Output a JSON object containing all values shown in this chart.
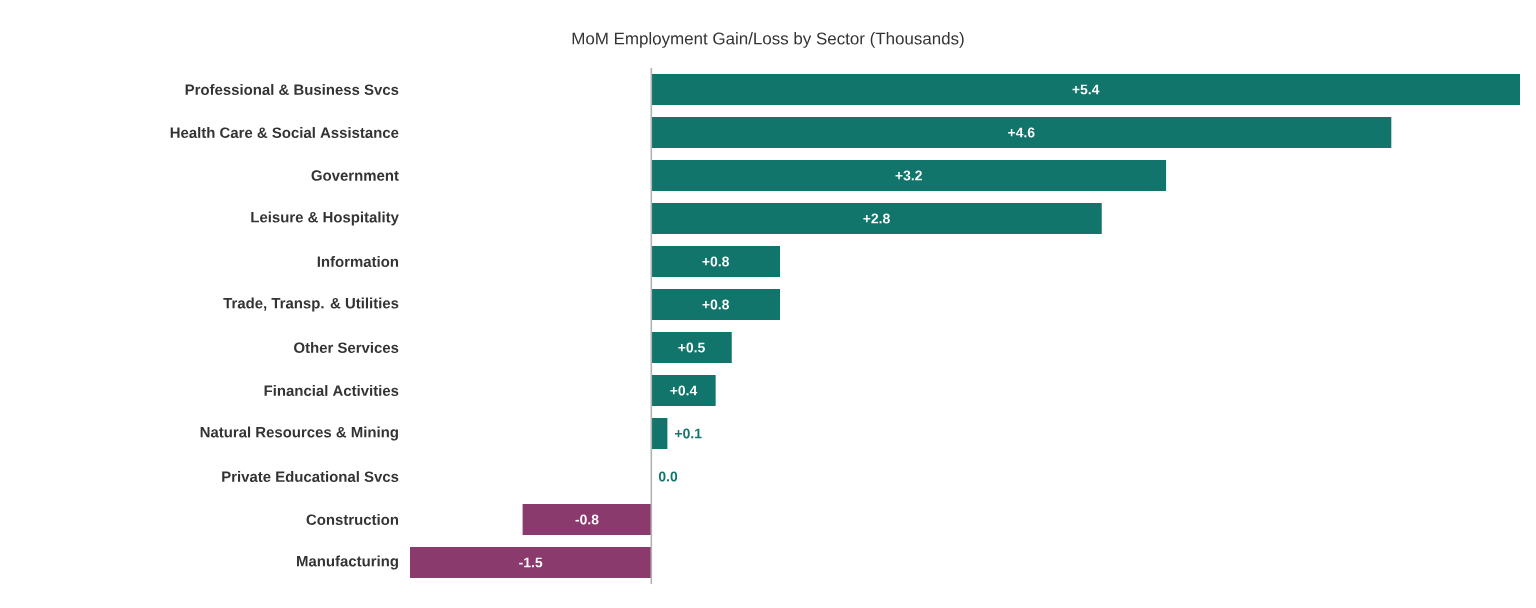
{
  "chart_data": {
    "type": "bar",
    "orientation": "horizontal",
    "title": "MoM Employment Gain/Loss by Sector (Thousands)",
    "categories": [
      "Professional & Business Svcs",
      "Health Care & Social Assistance",
      "Government",
      "Leisure & Hospitality",
      "Information",
      "Trade, Transp. & Utilities",
      "Other Services",
      "Financial Activities",
      "Natural Resources & Mining",
      "Private Educational Svcs",
      "Construction",
      "Manufacturing"
    ],
    "values": [
      5.4,
      4.6,
      3.2,
      2.8,
      0.8,
      0.8,
      0.5,
      0.4,
      0.1,
      0.0,
      -0.8,
      -1.5
    ],
    "value_labels": [
      "+5.4",
      "+4.6",
      "+3.2",
      "+2.8",
      "+0.8",
      "+0.8",
      "+0.5",
      "+0.4",
      "+0.1",
      "0.0",
      "-0.8",
      "-1.5"
    ],
    "colors": [
      "#11756b",
      "#11756b",
      "#11756b",
      "#11756b",
      "#11756b",
      "#11756b",
      "#11756b",
      "#11756b",
      "#11756b",
      "#11756b",
      "#8b3a6e",
      "#8b3a6e"
    ],
    "xlim": [
      -1.5,
      5.4
    ],
    "tick_labels": "y",
    "grid": false
  }
}
